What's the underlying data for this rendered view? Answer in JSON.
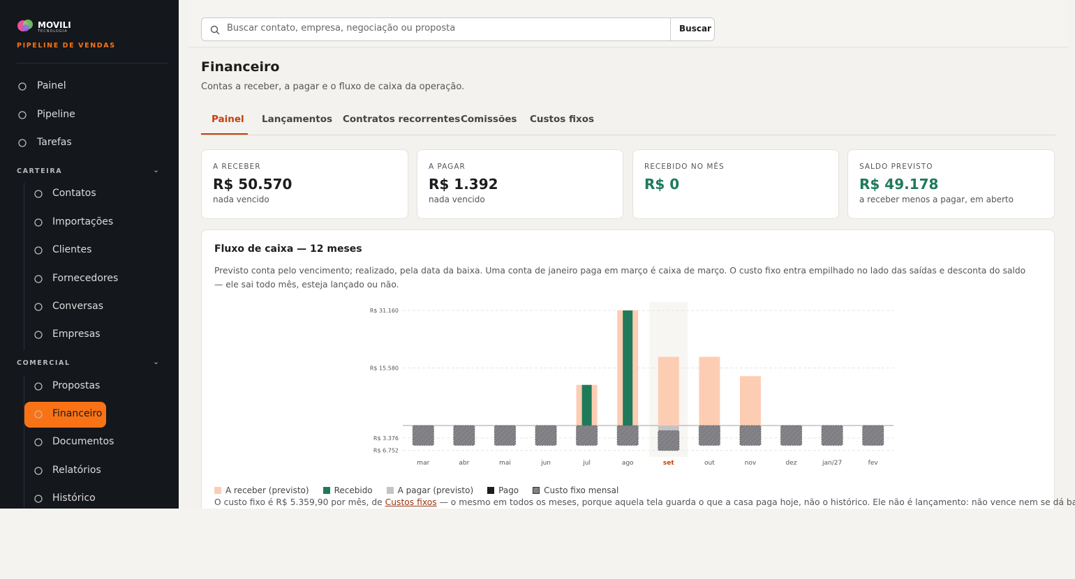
{
  "sidebar": {
    "brand": "MOVILI",
    "brand_sub": "TECNOLOGIA",
    "tagline": "PIPELINE DE VENDAS",
    "top_items": [
      "Painel",
      "Pipeline",
      "Tarefas"
    ],
    "sections": [
      {
        "title": "CARTEIRA",
        "items": [
          "Contatos",
          "Importações",
          "Clientes",
          "Fornecedores",
          "Conversas",
          "Empresas"
        ]
      },
      {
        "title": "COMERCIAL",
        "items": [
          "Propostas",
          "Financeiro",
          "Documentos",
          "Relatórios",
          "Histórico"
        ]
      }
    ]
  },
  "search": {
    "placeholder": "Buscar contato, empresa, negociação ou proposta",
    "button": "Buscar"
  },
  "header": {
    "title": "Financeiro",
    "subtitle": "Contas a receber, a pagar e o fluxo de caixa da operação."
  },
  "tabs": [
    "Painel",
    "Lançamentos",
    "Contratos recorrentes",
    "Comissões",
    "Custos fixos"
  ],
  "cards": [
    {
      "label": "A RECEBER",
      "value": "R$ 50.570",
      "note": "nada vencido"
    },
    {
      "label": "A PAGAR",
      "value": "R$ 1.392",
      "note": "nada vencido"
    },
    {
      "label": "RECEBIDO NO MÊS",
      "value": "R$ 0"
    },
    {
      "label": "SALDO PREVISTO",
      "value": "R$ 49.178",
      "note": "a receber menos a pagar, em aberto"
    }
  ],
  "panel": {
    "title": "Fluxo de caixa — 12 meses",
    "description": "Previsto conta pelo vencimento; realizado, pela data da baixa. Uma conta de janeiro paga em março é caixa de março. O custo fixo entra empilhado no lado das saídas e desconta do saldo — ele sai todo mês, esteja lançado ou não.",
    "footnote_before": "O custo fixo é R$ 5.359,90 por mês, de ",
    "footnote_link": "Custos fixos",
    "footnote_after": " — o mesmo em todos os meses, porque aquela tela guarda o que a casa paga hoje, não o histórico. Ele não é lançamento: não vence nem se dá baixa. Se você também"
  },
  "chart_data": {
    "type": "bar",
    "categories": [
      "mar",
      "abr",
      "mai",
      "jun",
      "jul",
      "ago",
      "set",
      "out",
      "nov",
      "dez",
      "jan/27",
      "fev"
    ],
    "highlight_category": "set",
    "series": [
      {
        "name": "A receber (previsto)",
        "color": "#fdcdb3",
        "values": [
          0,
          0,
          0,
          0,
          11000,
          31160,
          18600,
          18600,
          13370,
          0,
          0,
          0
        ]
      },
      {
        "name": "Recebido",
        "color": "#1f7a5a",
        "values": [
          0,
          0,
          0,
          0,
          11000,
          31160,
          0,
          0,
          0,
          0,
          0,
          0
        ]
      },
      {
        "name": "A pagar (previsto)",
        "color": "#c4c4c6",
        "values": [
          0,
          0,
          0,
          0,
          0,
          0,
          -1392,
          0,
          0,
          0,
          0,
          0
        ]
      },
      {
        "name": "Pago",
        "color": "#1d1d1f",
        "values": [
          0,
          0,
          0,
          0,
          0,
          0,
          0,
          0,
          0,
          0,
          0,
          0
        ]
      },
      {
        "name": "Custo fixo mensal",
        "color": "#7f7f83",
        "values": [
          -5359.9,
          -5359.9,
          -5359.9,
          -5359.9,
          -5359.9,
          -5359.9,
          -5359.9,
          -5359.9,
          -5359.9,
          -5359.9,
          -5359.9,
          -5359.9
        ]
      }
    ],
    "ylim": [
      -8500,
      33430
    ],
    "yticks": [
      {
        "value": 31160,
        "label": "R$ 31.160"
      },
      {
        "value": 15580,
        "label": "R$ 15.580"
      },
      {
        "value": -3376,
        "label": "R$ 3.376"
      },
      {
        "value": -6752,
        "label": "R$ 6.752"
      }
    ],
    "grid": true
  }
}
